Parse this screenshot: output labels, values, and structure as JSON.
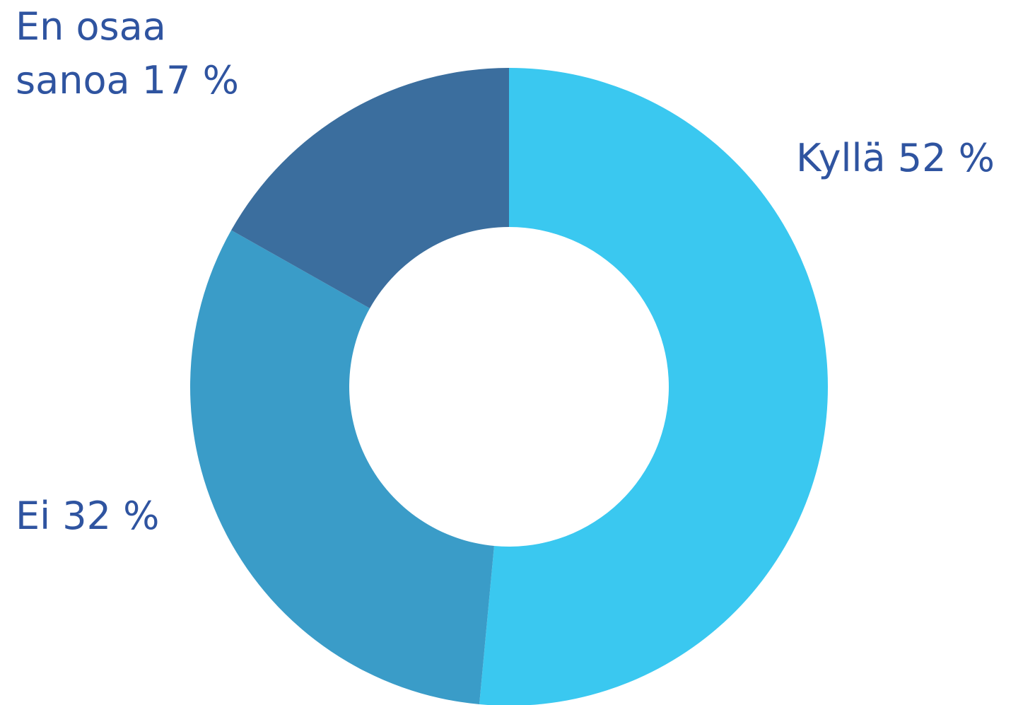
{
  "chart_data": {
    "type": "donut",
    "categories": [
      "Kyllä",
      "Ei",
      "En osaa sanoa"
    ],
    "values": [
      52,
      32,
      17
    ],
    "value_labels": [
      "52 %",
      "32 %",
      "17 %"
    ],
    "colors": [
      "#3ac8f0",
      "#3a9cc8",
      "#3b6e9e"
    ]
  }
}
